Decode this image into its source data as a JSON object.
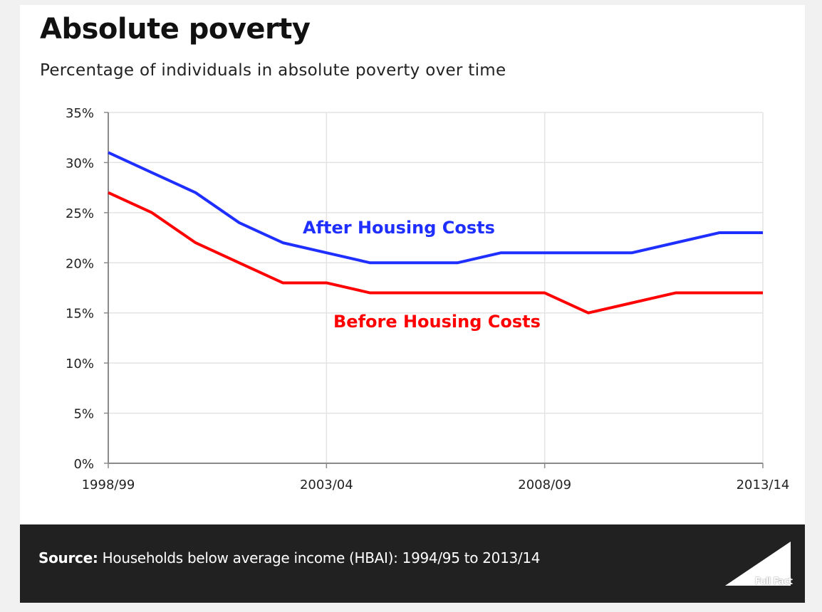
{
  "header": {
    "title": "Absolute poverty",
    "subtitle": "Percentage of individuals in absolute poverty over time"
  },
  "footer": {
    "source_label": "Source:",
    "source_text": "Households below average income (HBAI): 1994/95 to 2013/14",
    "logo_text": "Full Fact",
    "logo_icon": "triangle-logo-icon"
  },
  "chart_data": {
    "type": "line",
    "title": "Absolute poverty",
    "subtitle": "Percentage of individuals in absolute poverty over time",
    "xlabel": "",
    "ylabel": "",
    "x": [
      "1998/99",
      "1999/00",
      "2000/01",
      "2001/02",
      "2002/03",
      "2003/04",
      "2004/05",
      "2005/06",
      "2006/07",
      "2007/08",
      "2008/09",
      "2009/10",
      "2010/11",
      "2011/12",
      "2012/13",
      "2013/14"
    ],
    "x_tick_labels": [
      "1998/99",
      "2003/04",
      "2008/09",
      "2013/14"
    ],
    "y_ticks": [
      0,
      5,
      10,
      15,
      20,
      25,
      30,
      35
    ],
    "y_tick_labels": [
      "0%",
      "5%",
      "10%",
      "15%",
      "20%",
      "25%",
      "30%",
      "35%"
    ],
    "ylim": [
      0,
      35
    ],
    "grid": true,
    "legend": "inline-labels",
    "series": [
      {
        "name": "After Housing Costs",
        "color": "#1f2fff",
        "values": [
          31,
          29,
          27,
          24,
          22,
          21,
          20,
          20,
          20,
          21,
          21,
          21,
          21,
          22,
          23,
          23
        ]
      },
      {
        "name": "Before Housing Costs",
        "color": "#ff0000",
        "values": [
          27,
          25,
          22,
          20,
          18,
          18,
          17,
          17,
          17,
          17,
          17,
          15,
          16,
          17,
          17,
          17
        ]
      }
    ],
    "annotations": [
      {
        "text": "After Housing Costs",
        "series": "After Housing Costs",
        "color": "#1f2fff"
      },
      {
        "text": "Before Housing Costs",
        "series": "Before Housing Costs",
        "color": "#ff0000"
      }
    ]
  }
}
